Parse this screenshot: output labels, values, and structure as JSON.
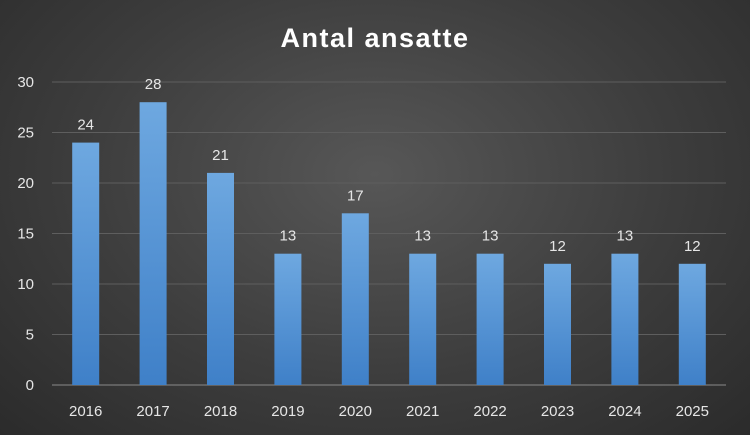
{
  "chart_data": {
    "type": "bar",
    "title": "Antal ansatte",
    "xlabel": "",
    "ylabel": "",
    "categories": [
      "2016",
      "2017",
      "2018",
      "2019",
      "2020",
      "2021",
      "2022",
      "2023",
      "2024",
      "2025"
    ],
    "values": [
      24,
      28,
      21,
      13,
      17,
      13,
      13,
      12,
      13,
      12
    ],
    "ylim": [
      0,
      30
    ],
    "yticks": [
      "0",
      "5",
      "10",
      "15",
      "20",
      "25",
      "30"
    ],
    "grid": true,
    "legend": "none",
    "colors": {
      "bar_top": "#6ea8e0",
      "bar_bottom": "#3f80c8",
      "grid": "#5e5e5e",
      "text": "#e6e6e6",
      "title": "#ffffff"
    }
  }
}
